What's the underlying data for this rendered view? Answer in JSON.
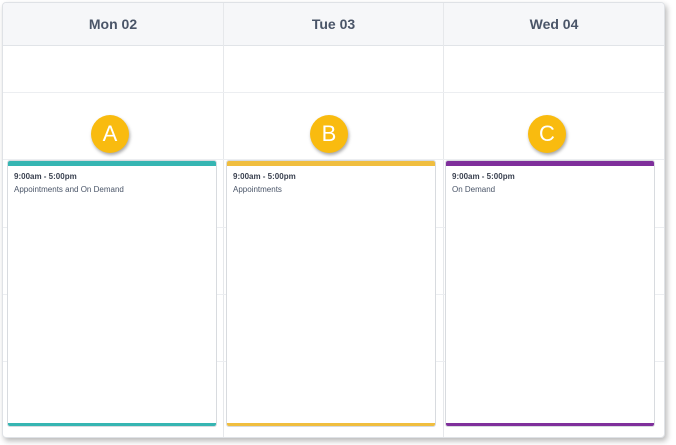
{
  "days": [
    {
      "label": "Mon 02",
      "badge": "A",
      "time": "9:00am - 5:00pm",
      "type": "Appointments and On Demand",
      "color": "#36b5b2"
    },
    {
      "label": "Tue 03",
      "badge": "B",
      "time": "9:00am - 5:00pm",
      "type": "Appointments",
      "color": "#f0be3f"
    },
    {
      "label": "Wed 04",
      "badge": "C",
      "time": "9:00am - 5:00pm",
      "type": "On Demand",
      "color": "#7f2f9b"
    }
  ],
  "colors": {
    "badge": "#f9bb0f",
    "header_bg": "#f6f7f9"
  }
}
